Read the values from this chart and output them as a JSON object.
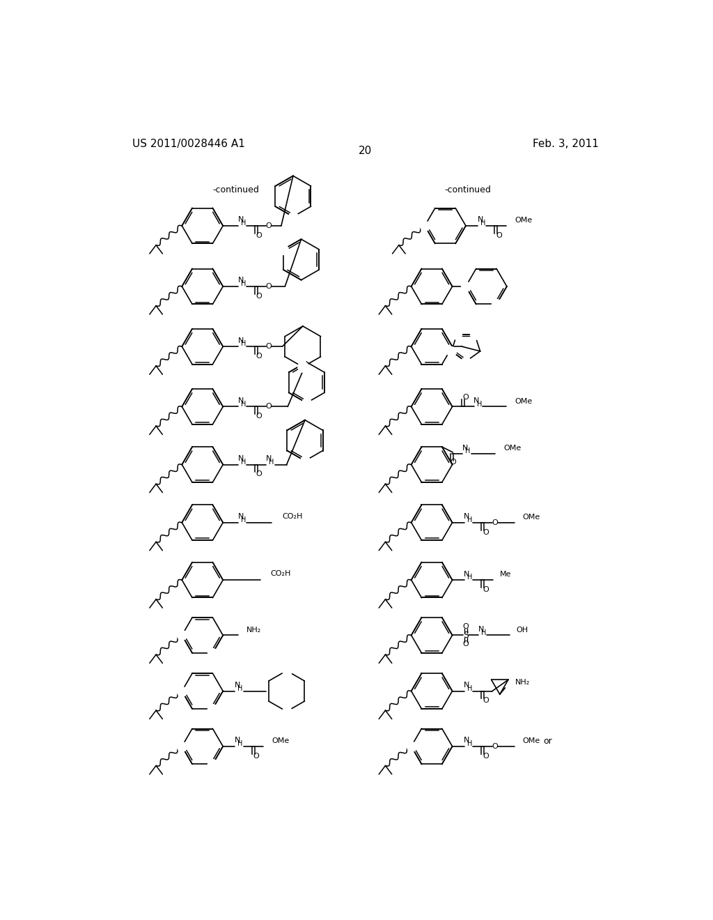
{
  "patent_number": "US 2011/0028446 A1",
  "date": "Feb. 3, 2011",
  "page_number": "20",
  "background_color": "#ffffff",
  "continued_label": "-continued"
}
